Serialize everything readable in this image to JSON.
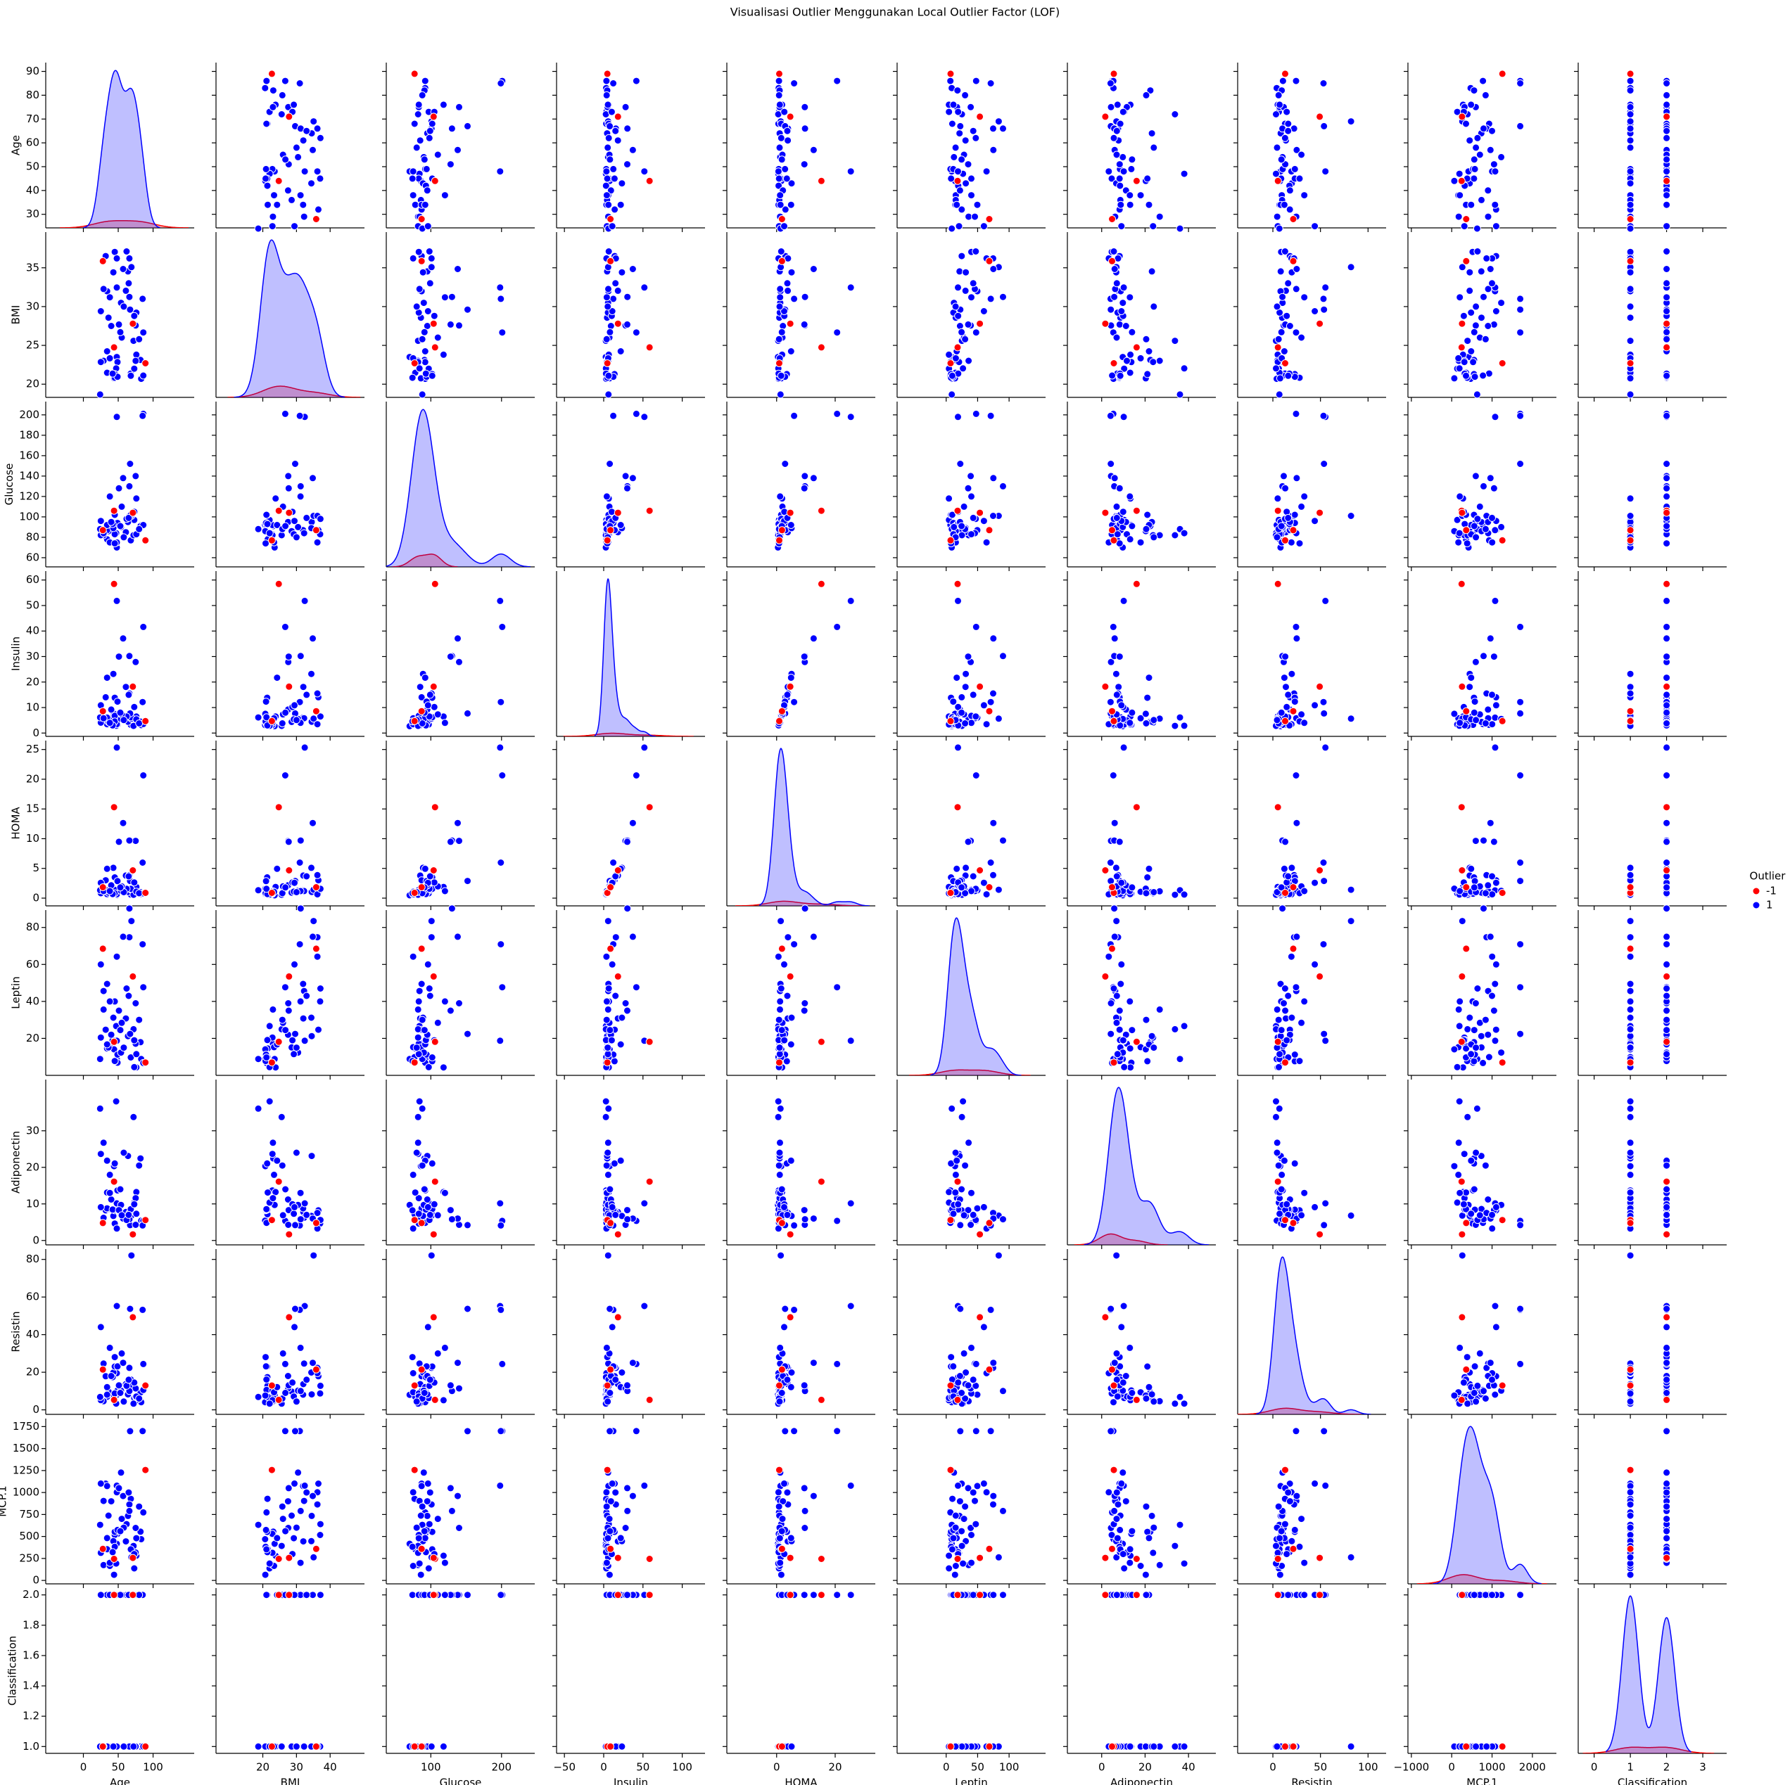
{
  "chart_data": {
    "type": "pairplot",
    "title": "Visualisasi Outlier Menggunakan Local Outlier Factor (LOF)",
    "variables": [
      {
        "name": "Age",
        "values": [
          48,
          83,
          82,
          68,
          86,
          49,
          89,
          76,
          73,
          75,
          34,
          29,
          25,
          24,
          38,
          44,
          47,
          61,
          64,
          32,
          36,
          34,
          29,
          69,
          45,
          48,
          66,
          28,
          43,
          72,
          45,
          45,
          49,
          34,
          42,
          68,
          86,
          48,
          85,
          44,
          71,
          54,
          67,
          75,
          57,
          66,
          51,
          76,
          62,
          40,
          55,
          73,
          38,
          80,
          25,
          58,
          53,
          65
        ],
        "xlim": [
          -54,
          159
        ],
        "xticks": [
          0,
          50,
          100
        ],
        "ylim": [
          24.3,
          93.7
        ],
        "yticks": [
          30,
          40,
          50,
          60,
          70,
          80,
          90
        ]
      },
      {
        "name": "BMI",
        "values": [
          23.5,
          20.69,
          23.12,
          21.37,
          21.11,
          22.85,
          22.7,
          23.8,
          22,
          23,
          21.47,
          23.01,
          22.86,
          18.67,
          23.34,
          20.76,
          22.03,
          32.04,
          34.53,
          36.51,
          28.57,
          31.98,
          32.27,
          35.09,
          37.04,
          36.21,
          36.21,
          35.86,
          34.42,
          25.59,
          21.3,
          20.83,
          20.96,
          24.24,
          21.36,
          21.08,
          26.67,
          32.46,
          31,
          24.74,
          27.8,
          30.48,
          29.61,
          27.56,
          34.84,
          31.24,
          27.69,
          29.22,
          37.11,
          27.5,
          26,
          28.8,
          31.2,
          25.8,
          29.4,
          30,
          26.7,
          33
        ],
        "xlim": [
          6.1,
          50.2
        ],
        "xticks": [
          20,
          30,
          40
        ],
        "ylim": [
          18.3,
          39.6
        ],
        "yticks": [
          20,
          25,
          30,
          35
        ]
      },
      {
        "name": "Glucose",
        "values": [
          70,
          92,
          91,
          77,
          92,
          92,
          77,
          118,
          97,
          83,
          78,
          82,
          82,
          88,
          75,
          86,
          84,
          85,
          95,
          87,
          86,
          87,
          84,
          101,
          83,
          75,
          101,
          87,
          89,
          82,
          102,
          74,
          94,
          92,
          93,
          102,
          201,
          198,
          199,
          106,
          104,
          90,
          152,
          140,
          138,
          130,
          128,
          83,
          98,
          95,
          110,
          105,
          120,
          88,
          96,
          80,
          91,
          99
        ],
        "xlim": [
          37,
          247
        ],
        "xticks": [
          100,
          200
        ],
        "ylim": [
          51,
          213
        ],
        "yticks": [
          60,
          80,
          100,
          120,
          140,
          160,
          180,
          200
        ]
      },
      {
        "name": "Insulin",
        "values": [
          2.71,
          3.12,
          4.5,
          3.23,
          3.55,
          3.23,
          4.69,
          6.47,
          3.35,
          4.95,
          3.47,
          5.66,
          4.09,
          6.11,
          5.78,
          7.55,
          2.87,
          18.08,
          4.43,
          14.03,
          4.35,
          6.04,
          5.81,
          5.65,
          6.76,
          3.48,
          15.53,
          8.58,
          23.19,
          2.82,
          13.85,
          4.56,
          12.31,
          21.7,
          3,
          6.2,
          41.61,
          51.81,
          12.16,
          58.46,
          18.2,
          5.54,
          7.69,
          27.86,
          37.09,
          30.2,
          29.98,
          5.38,
          6.5,
          9.2,
          7.3,
          10.2,
          4,
          3.8,
          10.9,
          5.1,
          8,
          15
        ],
        "xlim": [
          -60,
          129
        ],
        "xticks": [
          {
            "value": -50,
            "label": "−50"
          },
          0,
          50,
          100
        ],
        "ylim": [
          -1.3,
          63.5
        ],
        "yticks": [
          0,
          10,
          20,
          30,
          40,
          50,
          60
        ]
      },
      {
        "name": "HOMA",
        "values": [
          0.47,
          0.71,
          1.01,
          0.61,
          0.81,
          0.73,
          0.89,
          1.88,
          0.8,
          1.01,
          0.67,
          1.15,
          0.83,
          1.33,
          1.07,
          1.6,
          0.6,
          3.8,
          1.04,
          3.01,
          0.92,
          1.3,
          1.2,
          1.41,
          1.39,
          0.64,
          3.87,
          1.84,
          5.1,
          0.57,
          3.49,
          0.83,
          2.86,
          4.93,
          0.69,
          1.56,
          20.65,
          25.33,
          5.98,
          15.3,
          4.67,
          1.23,
          2.89,
          9.63,
          12.64,
          9.69,
          9.48,
          1.1,
          1.57,
          2.16,
          1.98,
          2.64,
          1.19,
          0.83,
          2.58,
          1.01,
          1.8,
          3.67
        ],
        "xlim": [
          -17,
          33.7
        ],
        "xticks": [
          0,
          20
        ],
        "ylim": [
          -1.3,
          26.5
        ],
        "yticks": [
          0,
          5,
          10,
          15,
          20,
          25
        ]
      },
      {
        "name": "Leptin",
        "values": [
          8.81,
          8.84,
          17.94,
          9.88,
          6.7,
          6.83,
          6.96,
          4.31,
          4.47,
          17.13,
          14.57,
          35.59,
          20.45,
          8.88,
          15.26,
          14.09,
          26.65,
          30.77,
          21.21,
          24.7,
          15.12,
          49.46,
          45.62,
          83.48,
          39.98,
          64.2,
          74.7,
          68.51,
          31.21,
          24.96,
          7.65,
          7.75,
          11.24,
          16.74,
          19.08,
          9.7,
          47.65,
          18.73,
          70.9,
          18.16,
          53.5,
          12.33,
          22.4,
          39,
          75,
          90.28,
          35,
          11.5,
          47,
          22,
          28.4,
          19,
          40,
          30,
          60,
          15,
          24.5,
          43
        ],
        "xlim": [
          -78,
          158
        ],
        "xticks": [
          0,
          50,
          100
        ],
        "ylim": [
          0,
          89.4
        ],
        "yticks": [
          20,
          40,
          60,
          80
        ]
      },
      {
        "name": "Adiponectin",
        "values": [
          9.7,
          5.43,
          22.43,
          7.17,
          4.82,
          13.68,
          5.59,
          13.25,
          10.36,
          11.58,
          13.11,
          26.72,
          23.67,
          36.06,
          17.95,
          20.32,
          38.04,
          7.78,
          23.12,
          8.25,
          8.6,
          8.78,
          6.21,
          6.8,
          4.62,
          3.27,
          7.54,
          4.79,
          6.7,
          33.75,
          21.06,
          8.24,
          8.41,
          21.82,
          8.46,
          8.57,
          5.36,
          10.15,
          4.1,
          16.1,
          1.66,
          9.73,
          4.2,
          4.29,
          6,
          5.8,
          8.3,
          7.3,
          5.6,
          11.2,
          6.9,
          9.9,
          13,
          20.5,
          9.1,
          24,
          14,
          7
        ],
        "xlim": [
          -15.8,
          52.6
        ],
        "xticks": [
          0,
          20,
          40
        ],
        "ylim": [
          -1.2,
          44
        ],
        "yticks": [
          0,
          10,
          20,
          30
        ]
      },
      {
        "name": "Resistin",
        "values": [
          8,
          4.06,
          9.28,
          12.77,
          10.58,
          10.32,
          12.94,
          5.1,
          6.28,
          7.09,
          6.92,
          4.58,
          5.14,
          6.85,
          9.35,
          7.64,
          3.32,
          13.68,
          8.23,
          17.87,
          9.75,
          8.09,
          24.6,
          82.1,
          8.71,
          19.49,
          22.32,
          21.44,
          19.87,
          3.27,
          23.03,
          28.03,
          23.12,
          12.07,
          17.38,
          16.1,
          24.37,
          55.22,
          53.2,
          5.31,
          49.24,
          10.19,
          53.7,
          11.4,
          25,
          10,
          13,
          7.1,
          12.8,
          18,
          30,
          14.5,
          33,
          6,
          44,
          4.4,
          9,
          16
        ],
        "xlim": [
          -37,
          119
        ],
        "xticks": [
          0,
          50,
          100
        ],
        "ylim": [
          -2.4,
          85.5
        ],
        "yticks": [
          0,
          20,
          40,
          60,
          80
        ]
      },
      {
        "name": "MCP.1",
        "values": [
          417,
          469,
          555,
          928,
          774,
          530,
          1256,
          281,
          137,
          318,
          355,
          175,
          314,
          632,
          165,
          64,
          192,
          444,
          734,
          1101,
          737,
          1074,
          904,
          263,
          517,
          1003,
          864,
          359,
          447,
          392,
          552,
          383,
          574,
          482,
          322,
          354,
          1699,
          1078,
          1699,
          245,
          256,
          1227,
          1698,
          597,
          960,
          790,
          1050,
          480,
          640,
          900,
          700,
          300,
          200,
          840,
          1102,
          600,
          560,
          1000
        ],
        "xlim": [
          -1085,
          2595
        ],
        "xticks": [
          {
            "value": -1000,
            "label": "−1000"
          },
          0,
          1000,
          2000
        ],
        "ylim": [
          -39,
          1841
        ],
        "yticks": [
          0,
          250,
          500,
          750,
          1000,
          1250,
          1500,
          1750
        ]
      },
      {
        "name": "Classification",
        "values": [
          1,
          1,
          1,
          1,
          1,
          1,
          1,
          1,
          1,
          1,
          1,
          1,
          1,
          1,
          1,
          1,
          1,
          1,
          1,
          1,
          1,
          1,
          1,
          1,
          1,
          1,
          1,
          1,
          1,
          1,
          2,
          2,
          2,
          2,
          2,
          2,
          2,
          2,
          2,
          2,
          2,
          2,
          2,
          2,
          2,
          2,
          2,
          2,
          2,
          2,
          2,
          2,
          2,
          2,
          2,
          1,
          2,
          2
        ],
        "xlim": [
          -0.44,
          3.66
        ],
        "xticks": [
          0,
          1,
          2,
          3
        ],
        "ylim": [
          0.955,
          2.045
        ],
        "yticks": [
          {
            "value": 1.0,
            "label": "1.0"
          },
          {
            "value": 1.2,
            "label": "1.2"
          },
          {
            "value": 1.4,
            "label": "1.4"
          },
          {
            "value": 1.6,
            "label": "1.6"
          },
          {
            "value": 1.8,
            "label": "1.8"
          },
          {
            "value": 2.0,
            "label": "2.0"
          }
        ]
      }
    ],
    "hue": {
      "title": "Outlier",
      "values": [
        1,
        1,
        1,
        1,
        1,
        1,
        -1,
        1,
        1,
        1,
        1,
        1,
        1,
        1,
        1,
        1,
        1,
        1,
        1,
        1,
        1,
        1,
        1,
        1,
        1,
        1,
        1,
        -1,
        1,
        1,
        1,
        1,
        1,
        1,
        1,
        1,
        1,
        1,
        1,
        -1,
        -1,
        1,
        1,
        1,
        1,
        1,
        1,
        1,
        1,
        1,
        1,
        1,
        1,
        1,
        1,
        1,
        1,
        1
      ],
      "groups": [
        {
          "name": "-1",
          "value": -1,
          "color": "#ff0000"
        },
        {
          "name": "1",
          "value": 1,
          "color": "#0000ff"
        }
      ]
    }
  }
}
